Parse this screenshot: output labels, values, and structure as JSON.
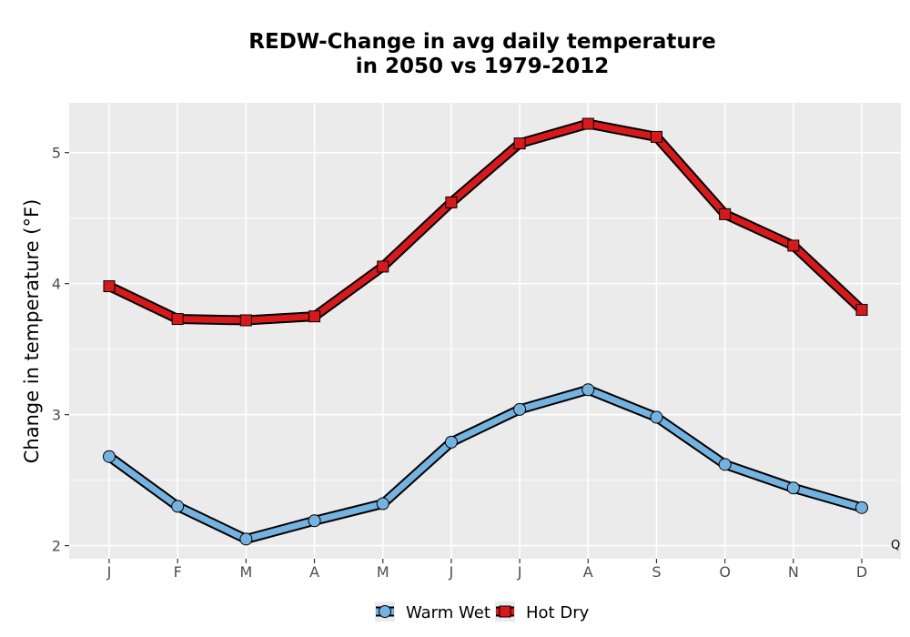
{
  "chart_data": {
    "type": "line",
    "title": [
      "REDW-Change in avg daily temperature",
      "in 2050 vs 1979-2012"
    ],
    "xlabel": "",
    "ylabel": "Change in temperature (°F)",
    "categories": [
      "J",
      "F",
      "M",
      "A",
      "M",
      "J",
      "J",
      "A",
      "S",
      "O",
      "N",
      "D"
    ],
    "ylim": [
      1.9,
      5.38
    ],
    "yticks": [
      2,
      3,
      4,
      5
    ],
    "grid": true,
    "legend_position": "bottom",
    "series": [
      {
        "name": "Warm Wet",
        "marker": "circle",
        "color": "#74b3e0",
        "values": [
          2.68,
          2.3,
          2.05,
          2.19,
          2.32,
          2.79,
          3.04,
          3.19,
          2.98,
          2.62,
          2.44,
          2.29
        ]
      },
      {
        "name": "Hot Dry",
        "marker": "square",
        "color": "#d7191c",
        "values": [
          3.98,
          3.73,
          3.72,
          3.75,
          4.13,
          4.62,
          5.07,
          5.22,
          5.12,
          4.53,
          4.29,
          3.8
        ]
      }
    ],
    "corner_note": "Q"
  }
}
